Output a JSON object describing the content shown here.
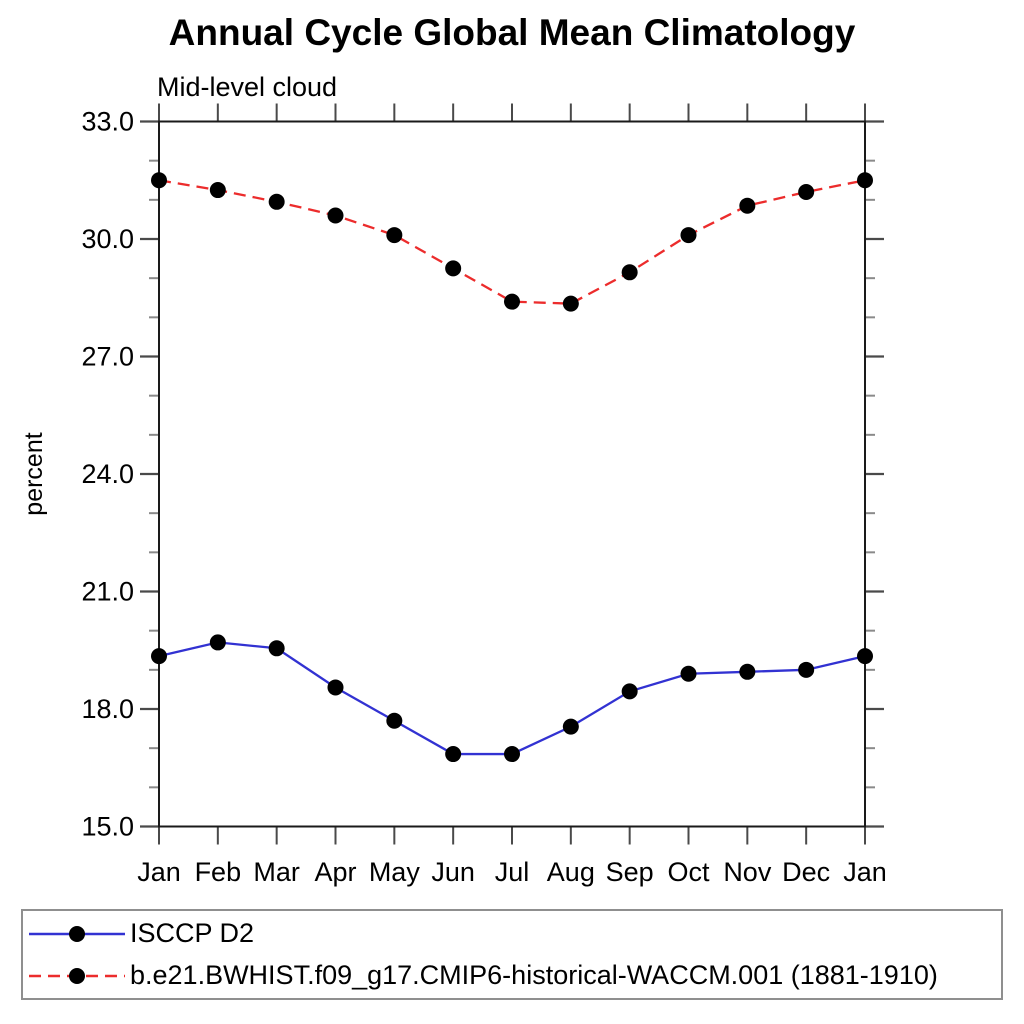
{
  "chart_data": {
    "type": "line",
    "title": "Annual Cycle Global Mean Climatology",
    "subtitle": "Mid-level cloud",
    "xlabel": "",
    "ylabel": "percent",
    "categories": [
      "Jan",
      "Feb",
      "Mar",
      "Apr",
      "May",
      "Jun",
      "Jul",
      "Aug",
      "Sep",
      "Oct",
      "Nov",
      "Dec",
      "Jan"
    ],
    "ylim": [
      15.0,
      33.0
    ],
    "y_major_step": 3.0,
    "y_minor_step": 1.0,
    "y_major_labels": [
      "15.0",
      "18.0",
      "21.0",
      "24.0",
      "27.0",
      "30.0",
      "33.0"
    ],
    "grid": false,
    "legend_position": "bottom",
    "marker": "filled-circle",
    "marker_color": "#000000",
    "series": [
      {
        "name": "ISCCP D2",
        "color": "#3232d2",
        "style": "solid",
        "values": [
          19.35,
          19.7,
          19.55,
          18.55,
          17.7,
          16.85,
          16.85,
          17.55,
          18.45,
          18.9,
          18.95,
          19.0,
          19.35
        ]
      },
      {
        "name": "b.e21.BWHIST.f09_g17.CMIP6-historical-WACCM.001 (1881-1910)",
        "color": "#ec2c2c",
        "style": "dashed",
        "values": [
          31.5,
          31.25,
          30.95,
          30.6,
          30.1,
          29.25,
          28.4,
          28.35,
          29.15,
          30.1,
          30.85,
          31.2,
          31.5
        ]
      }
    ]
  }
}
